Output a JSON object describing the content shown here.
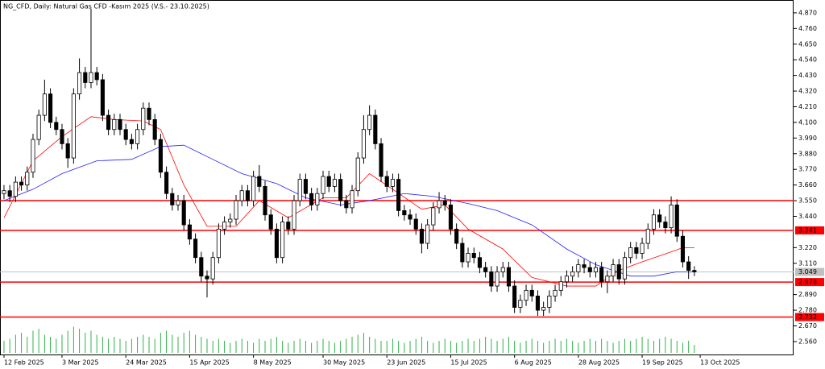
{
  "chart_data": {
    "type": "candlestick",
    "title": "NG_CFD, Daily:  Natural Gas CFD -Kasım 2025 (V.S.- 23.10.2025)",
    "xlim": [
      -0.69,
      136.1
    ],
    "ylim": [
      2.469,
      4.96
    ],
    "xticks": [
      {
        "value": 0,
        "label": "12 Feb 2025"
      },
      {
        "value": 10,
        "label": "3 Mar 2025"
      },
      {
        "value": 21,
        "label": "24 Mar 2025"
      },
      {
        "value": 32,
        "label": "15 Apr 2025"
      },
      {
        "value": 43,
        "label": "8 May 2025"
      },
      {
        "value": 55,
        "label": "30 May 2025"
      },
      {
        "value": 66,
        "label": "23 Jun 2025"
      },
      {
        "value": 77,
        "label": "15 Jul 2025"
      },
      {
        "value": 88,
        "label": "6 Aug 2025"
      },
      {
        "value": 99,
        "label": "28 Aug 2025"
      },
      {
        "value": 110,
        "label": "19 Sep 2025"
      },
      {
        "value": 120,
        "label": "13 Oct 2025"
      }
    ],
    "yticks": [
      {
        "value": 4.87,
        "label": "4.870"
      },
      {
        "value": 4.76,
        "label": "4.760"
      },
      {
        "value": 4.65,
        "label": "4.650"
      },
      {
        "value": 4.54,
        "label": "4.540"
      },
      {
        "value": 4.43,
        "label": "4.430"
      },
      {
        "value": 4.32,
        "label": "4.320"
      },
      {
        "value": 4.21,
        "label": "4.210"
      },
      {
        "value": 4.1,
        "label": "4.100"
      },
      {
        "value": 3.99,
        "label": "3.990"
      },
      {
        "value": 3.88,
        "label": "3.880"
      },
      {
        "value": 3.77,
        "label": "3.770"
      },
      {
        "value": 3.66,
        "label": "3.660"
      },
      {
        "value": 3.55,
        "label": "3.550"
      },
      {
        "value": 3.44,
        "label": "3.440"
      },
      {
        "value": 3.22,
        "label": "3.220"
      },
      {
        "value": 3.11,
        "label": "3.110"
      },
      {
        "value": 2.89,
        "label": "2.890"
      },
      {
        "value": 2.78,
        "label": "2.780"
      },
      {
        "value": 2.67,
        "label": "2.670"
      },
      {
        "value": 2.56,
        "label": "2.560"
      }
    ],
    "levels": [
      3.55,
      3.341,
      2.978,
      2.732
    ],
    "level_labels": [
      null,
      "3.341",
      "2.978",
      "2.732"
    ],
    "level_color": "#ff0000",
    "current_price": {
      "value": 3.049,
      "label": "3.049"
    },
    "up_color": "#ffffff",
    "down_color": "#000000",
    "volume_color": "#2fb34a",
    "candles": [
      [
        3.6,
        3.66,
        3.56,
        3.62
      ],
      [
        3.62,
        3.66,
        3.54,
        3.58
      ],
      [
        3.58,
        3.72,
        3.54,
        3.68
      ],
      [
        3.68,
        3.72,
        3.62,
        3.66
      ],
      [
        3.66,
        3.79,
        3.62,
        3.75
      ],
      [
        3.75,
        4.02,
        3.71,
        3.98
      ],
      [
        3.98,
        4.19,
        3.94,
        4.15
      ],
      [
        4.15,
        4.4,
        4.11,
        4.3
      ],
      [
        4.3,
        4.34,
        4.06,
        4.1
      ],
      [
        4.1,
        4.14,
        4.01,
        4.05
      ],
      [
        4.05,
        4.09,
        3.91,
        3.95
      ],
      [
        3.95,
        3.99,
        3.78,
        3.85
      ],
      [
        3.85,
        4.34,
        3.81,
        4.3
      ],
      [
        4.3,
        4.55,
        4.26,
        4.45
      ],
      [
        4.45,
        4.49,
        4.34,
        4.38
      ],
      [
        4.38,
        4.9,
        4.34,
        4.45
      ],
      [
        4.45,
        4.49,
        4.36,
        4.4
      ],
      [
        4.4,
        4.44,
        4.11,
        4.15
      ],
      [
        4.15,
        4.19,
        4.01,
        4.05
      ],
      [
        4.05,
        4.16,
        4.01,
        4.12
      ],
      [
        4.12,
        4.16,
        4.01,
        4.05
      ],
      [
        4.05,
        4.09,
        3.94,
        3.98
      ],
      [
        3.98,
        4.02,
        3.91,
        3.95
      ],
      [
        3.95,
        4.09,
        3.91,
        4.05
      ],
      [
        4.05,
        4.24,
        4.01,
        4.2
      ],
      [
        4.2,
        4.24,
        4.08,
        4.12
      ],
      [
        4.12,
        4.16,
        3.94,
        3.98
      ],
      [
        3.98,
        4.02,
        3.71,
        3.75
      ],
      [
        3.75,
        3.79,
        3.56,
        3.6
      ],
      [
        3.6,
        3.64,
        3.48,
        3.52
      ],
      [
        3.52,
        3.59,
        3.48,
        3.55
      ],
      [
        3.55,
        3.59,
        3.34,
        3.38
      ],
      [
        3.38,
        3.42,
        3.24,
        3.28
      ],
      [
        3.28,
        3.32,
        3.11,
        3.15
      ],
      [
        3.15,
        3.19,
        2.98,
        3.02
      ],
      [
        3.02,
        3.06,
        2.87,
        3.0
      ],
      [
        3.0,
        3.19,
        2.96,
        3.15
      ],
      [
        3.15,
        3.39,
        3.11,
        3.35
      ],
      [
        3.35,
        3.44,
        3.31,
        3.4
      ],
      [
        3.4,
        3.46,
        3.36,
        3.42
      ],
      [
        3.42,
        3.59,
        3.38,
        3.55
      ],
      [
        3.55,
        3.66,
        3.51,
        3.62
      ],
      [
        3.62,
        3.66,
        3.51,
        3.55
      ],
      [
        3.55,
        3.76,
        3.51,
        3.72
      ],
      [
        3.72,
        3.8,
        3.61,
        3.65
      ],
      [
        3.65,
        3.69,
        3.41,
        3.45
      ],
      [
        3.45,
        3.49,
        3.31,
        3.35
      ],
      [
        3.35,
        3.39,
        3.11,
        3.15
      ],
      [
        3.15,
        3.44,
        3.11,
        3.4
      ],
      [
        3.4,
        3.44,
        3.31,
        3.35
      ],
      [
        3.35,
        3.59,
        3.31,
        3.55
      ],
      [
        3.55,
        3.74,
        3.51,
        3.7
      ],
      [
        3.7,
        3.74,
        3.56,
        3.6
      ],
      [
        3.6,
        3.64,
        3.48,
        3.52
      ],
      [
        3.52,
        3.64,
        3.48,
        3.6
      ],
      [
        3.6,
        3.76,
        3.56,
        3.72
      ],
      [
        3.72,
        3.76,
        3.61,
        3.65
      ],
      [
        3.65,
        3.74,
        3.61,
        3.7
      ],
      [
        3.7,
        3.74,
        3.51,
        3.55
      ],
      [
        3.55,
        3.59,
        3.46,
        3.5
      ],
      [
        3.5,
        3.66,
        3.46,
        3.62
      ],
      [
        3.62,
        3.89,
        3.58,
        3.85
      ],
      [
        3.85,
        4.15,
        3.81,
        4.05
      ],
      [
        4.05,
        4.22,
        4.01,
        4.15
      ],
      [
        4.15,
        4.19,
        3.91,
        3.95
      ],
      [
        3.95,
        3.99,
        3.68,
        3.72
      ],
      [
        3.72,
        3.76,
        3.61,
        3.65
      ],
      [
        3.65,
        3.74,
        3.61,
        3.7
      ],
      [
        3.7,
        3.74,
        3.44,
        3.48
      ],
      [
        3.48,
        3.52,
        3.41,
        3.45
      ],
      [
        3.45,
        3.49,
        3.38,
        3.42
      ],
      [
        3.42,
        3.46,
        3.31,
        3.35
      ],
      [
        3.35,
        3.39,
        3.18,
        3.25
      ],
      [
        3.25,
        3.42,
        3.21,
        3.38
      ],
      [
        3.38,
        3.54,
        3.34,
        3.5
      ],
      [
        3.5,
        3.61,
        3.46,
        3.55
      ],
      [
        3.55,
        3.59,
        3.48,
        3.52
      ],
      [
        3.52,
        3.56,
        3.31,
        3.35
      ],
      [
        3.35,
        3.39,
        3.21,
        3.25
      ],
      [
        3.25,
        3.29,
        3.08,
        3.12
      ],
      [
        3.12,
        3.22,
        3.08,
        3.18
      ],
      [
        3.18,
        3.22,
        3.11,
        3.15
      ],
      [
        3.15,
        3.19,
        3.04,
        3.08
      ],
      [
        3.08,
        3.12,
        3.01,
        3.05
      ],
      [
        3.05,
        3.09,
        2.91,
        2.95
      ],
      [
        2.95,
        3.09,
        2.91,
        3.05
      ],
      [
        3.05,
        3.12,
        3.01,
        3.08
      ],
      [
        3.08,
        3.12,
        2.91,
        2.95
      ],
      [
        2.95,
        2.99,
        2.76,
        2.8
      ],
      [
        2.8,
        2.89,
        2.76,
        2.85
      ],
      [
        2.85,
        2.96,
        2.81,
        2.92
      ],
      [
        2.92,
        2.96,
        2.84,
        2.88
      ],
      [
        2.88,
        2.92,
        2.74,
        2.78
      ],
      [
        2.78,
        2.84,
        2.74,
        2.8
      ],
      [
        2.8,
        2.92,
        2.76,
        2.88
      ],
      [
        2.88,
        2.96,
        2.84,
        2.92
      ],
      [
        2.92,
        3.02,
        2.88,
        2.98
      ],
      [
        2.98,
        3.06,
        2.94,
        3.02
      ],
      [
        3.02,
        3.09,
        2.98,
        3.05
      ],
      [
        3.05,
        3.14,
        3.01,
        3.1
      ],
      [
        3.1,
        3.14,
        3.04,
        3.08
      ],
      [
        3.08,
        3.12,
        3.01,
        3.05
      ],
      [
        3.05,
        3.12,
        3.01,
        3.08
      ],
      [
        3.08,
        3.12,
        2.94,
        2.98
      ],
      [
        2.98,
        3.06,
        2.9,
        3.02
      ],
      [
        3.02,
        3.14,
        2.98,
        3.1
      ],
      [
        3.1,
        3.14,
        2.96,
        3.0
      ],
      [
        3.0,
        3.19,
        2.96,
        3.15
      ],
      [
        3.15,
        3.26,
        3.11,
        3.22
      ],
      [
        3.22,
        3.26,
        3.14,
        3.18
      ],
      [
        3.18,
        3.29,
        3.14,
        3.25
      ],
      [
        3.25,
        3.39,
        3.21,
        3.35
      ],
      [
        3.35,
        3.49,
        3.31,
        3.45
      ],
      [
        3.45,
        3.49,
        3.36,
        3.4
      ],
      [
        3.4,
        3.44,
        3.32,
        3.36
      ],
      [
        3.36,
        3.58,
        3.32,
        3.52
      ],
      [
        3.52,
        3.56,
        3.26,
        3.3
      ],
      [
        3.3,
        3.34,
        3.08,
        3.12
      ],
      [
        3.12,
        3.16,
        3.0,
        3.06
      ],
      [
        3.06,
        3.09,
        3.02,
        3.05
      ]
    ],
    "volume": [
      30,
      35,
      45,
      50,
      40,
      55,
      60,
      45,
      40,
      35,
      45,
      55,
      65,
      60,
      50,
      55,
      45,
      40,
      35,
      40,
      35,
      30,
      35,
      40,
      45,
      40,
      35,
      50,
      55,
      45,
      40,
      50,
      55,
      45,
      40,
      35,
      30,
      35,
      30,
      25,
      30,
      35,
      30,
      25,
      35,
      30,
      35,
      40,
      30,
      25,
      30,
      35,
      30,
      25,
      30,
      35,
      30,
      25,
      30,
      35,
      40,
      45,
      50,
      40,
      35,
      30,
      30,
      35,
      30,
      25,
      30,
      35,
      40,
      30,
      25,
      30,
      35,
      30,
      25,
      30,
      35,
      30,
      35,
      40,
      35,
      30,
      35,
      40,
      30,
      25,
      30,
      35,
      30,
      25,
      30,
      35,
      30,
      35,
      30,
      25,
      30,
      35,
      30,
      35,
      30,
      25,
      30,
      35,
      30,
      35,
      40,
      35,
      30,
      35,
      40,
      35,
      30,
      25,
      30,
      20
    ],
    "moving_averages": [
      {
        "color": "#ff0000",
        "x": [
          0,
          5,
          10,
          15,
          19,
          24,
          27,
          31,
          35,
          40,
          44,
          49,
          55,
          59,
          63,
          67,
          72,
          76,
          80,
          86,
          91,
          97,
          102,
          106,
          110,
          115,
          117,
          119
        ],
        "values": [
          3.43,
          3.83,
          4.0,
          4.14,
          4.12,
          4.11,
          4.05,
          3.66,
          3.37,
          3.37,
          3.55,
          3.43,
          3.57,
          3.57,
          3.74,
          3.63,
          3.49,
          3.52,
          3.35,
          3.21,
          3.01,
          2.95,
          2.95,
          3.06,
          3.12,
          3.19,
          3.22,
          3.22
        ]
      },
      {
        "color": "#2020ff",
        "x": [
          0,
          5,
          10,
          16,
          22,
          27,
          31,
          35,
          41,
          47,
          52,
          58,
          63,
          69,
          74,
          80,
          85,
          91,
          97,
          102,
          108,
          112,
          116,
          119
        ],
        "values": [
          3.55,
          3.63,
          3.74,
          3.83,
          3.84,
          3.93,
          3.94,
          3.86,
          3.74,
          3.67,
          3.57,
          3.52,
          3.55,
          3.6,
          3.58,
          3.53,
          3.48,
          3.38,
          3.21,
          3.1,
          3.02,
          3.02,
          3.05,
          3.05
        ]
      }
    ]
  }
}
